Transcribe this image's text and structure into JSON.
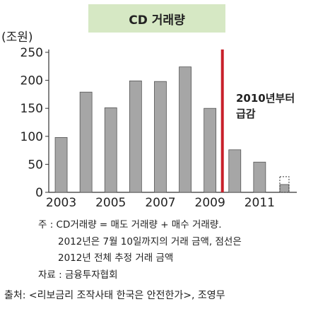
{
  "chart_data": {
    "type": "bar",
    "title": "CD 거래량",
    "ylabel": "(조원)",
    "ylim": [
      0,
      250
    ],
    "yticks": [
      0,
      50,
      100,
      150,
      200,
      250
    ],
    "categories": [
      "2003",
      "2004",
      "2005",
      "2006",
      "2007",
      "2008",
      "2009",
      "2010",
      "2011",
      "2012"
    ],
    "xtick_labels": [
      "2003",
      "2005",
      "2007",
      "2009",
      "2011"
    ],
    "values": [
      98,
      179,
      151,
      199,
      198,
      224,
      150,
      76,
      54,
      14
    ],
    "estimated_full_year": {
      "category": "2012",
      "value": 28
    },
    "marker_between": [
      "2009",
      "2010"
    ],
    "annotation": [
      "2010년부터",
      "급감"
    ],
    "colors": {
      "bar": "#a6a6a6",
      "bar_edge": "#555555",
      "marker": "#c8202a",
      "title_bg": "#d6e8c4"
    }
  },
  "notes": {
    "line1": "주 : CD거래량 = 매도 거래량 + 매수 거래량.",
    "line2": "2012년은 7월 10일까지의 거래 금액, 점선은",
    "line3": "2012년 전체 추정 거래 금액",
    "line4": "자료 : 금융투자협회"
  },
  "source": "출처: <리보금리 조작사태 한국은 안전한가>, 조영무"
}
